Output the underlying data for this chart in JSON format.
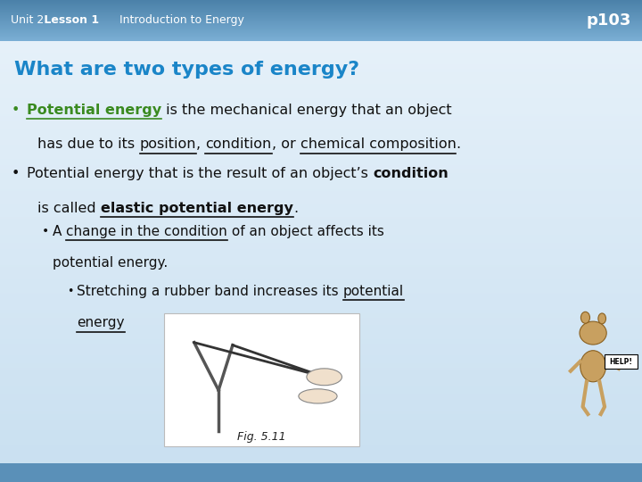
{
  "header_bg_top": "#7aaed4",
  "header_bg_bottom": "#4a80a8",
  "body_bg_top": "#e8f2fa",
  "body_bg_bottom": "#c8dff0",
  "footer_bg": "#5a90b8",
  "header_unit2": "Unit 2",
  "header_lesson1": " Lesson 1",
  "header_intro": "  Introduction to Energy",
  "header_page": "p103",
  "slide_title": "What are two types of energy?",
  "slide_title_color": "#1a85c8",
  "green_color": "#3a8a20",
  "black_color": "#111111",
  "white_color": "#ffffff",
  "fig_caption": "Fig. 5.11"
}
